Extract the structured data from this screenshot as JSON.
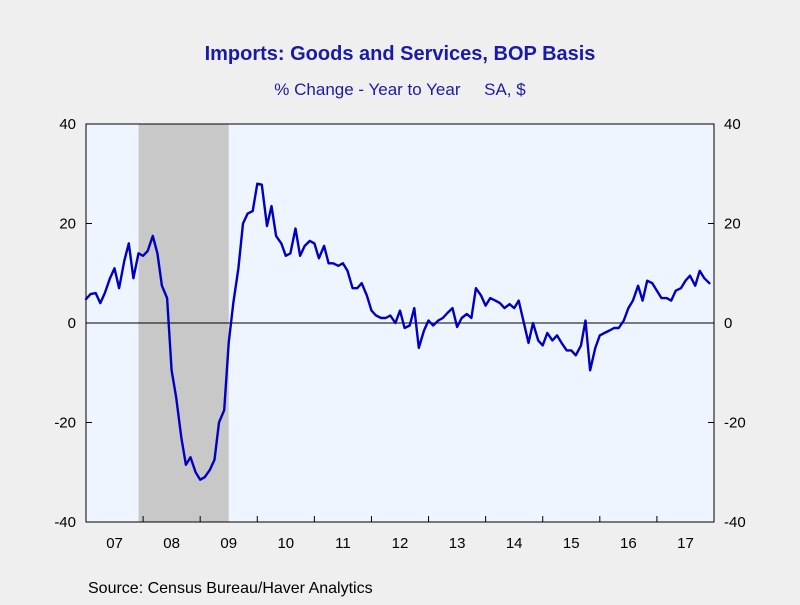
{
  "chart_data": {
    "type": "line",
    "title": "Imports: Goods and Services, BOP Basis",
    "subtitle": "% Change - Year to Year     SA, $",
    "source": "Source:  Census Bureau/Haver Analytics",
    "ylim": [
      -40,
      40
    ],
    "y_ticks": [
      -40,
      -20,
      0,
      20,
      40
    ],
    "x_range": [
      2007.0,
      2018.0
    ],
    "x_tick_labels": [
      "07",
      "08",
      "09",
      "10",
      "11",
      "12",
      "13",
      "14",
      "15",
      "16",
      "17"
    ],
    "recession": {
      "start": 2007.92,
      "end": 2009.5
    },
    "zero_line": true,
    "series": [
      {
        "color": "#0000c0",
        "x": [
          2007.0,
          2007.08,
          2007.17,
          2007.25,
          2007.33,
          2007.42,
          2007.5,
          2007.58,
          2007.67,
          2007.75,
          2007.83,
          2007.92,
          2008.0,
          2008.08,
          2008.17,
          2008.25,
          2008.33,
          2008.42,
          2008.5,
          2008.58,
          2008.67,
          2008.75,
          2008.83,
          2008.92,
          2009.0,
          2009.08,
          2009.17,
          2009.25,
          2009.33,
          2009.42,
          2009.5,
          2009.58,
          2009.67,
          2009.75,
          2009.83,
          2009.92,
          2010.0,
          2010.08,
          2010.17,
          2010.25,
          2010.33,
          2010.42,
          2010.5,
          2010.58,
          2010.67,
          2010.75,
          2010.83,
          2010.92,
          2011.0,
          2011.08,
          2011.17,
          2011.25,
          2011.33,
          2011.42,
          2011.5,
          2011.58,
          2011.67,
          2011.75,
          2011.83,
          2011.92,
          2012.0,
          2012.08,
          2012.17,
          2012.25,
          2012.33,
          2012.42,
          2012.5,
          2012.58,
          2012.67,
          2012.75,
          2012.83,
          2012.92,
          2013.0,
          2013.08,
          2013.17,
          2013.25,
          2013.33,
          2013.42,
          2013.5,
          2013.58,
          2013.67,
          2013.75,
          2013.83,
          2013.92,
          2014.0,
          2014.08,
          2014.17,
          2014.25,
          2014.33,
          2014.42,
          2014.5,
          2014.58,
          2014.67,
          2014.75,
          2014.83,
          2014.92,
          2015.0,
          2015.08,
          2015.17,
          2015.25,
          2015.33,
          2015.42,
          2015.5,
          2015.58,
          2015.67,
          2015.75,
          2015.83,
          2015.92,
          2016.0,
          2016.08,
          2016.17,
          2016.25,
          2016.33,
          2016.42,
          2016.5,
          2016.58,
          2016.67,
          2016.75,
          2016.83,
          2016.92,
          2017.0,
          2017.08,
          2017.17,
          2017.25,
          2017.33,
          2017.42,
          2017.5,
          2017.58,
          2017.67,
          2017.75,
          2017.83,
          2017.92
        ],
        "y": [
          4.8,
          5.8,
          6.0,
          4.0,
          6.0,
          9.0,
          11.0,
          7.0,
          12.5,
          16.0,
          9.0,
          14.0,
          13.5,
          14.5,
          17.5,
          14.0,
          7.5,
          5.0,
          -9.5,
          -15.0,
          -23.0,
          -28.5,
          -27.0,
          -30.0,
          -31.5,
          -31.0,
          -29.5,
          -27.5,
          -20.0,
          -17.5,
          -4.0,
          4.0,
          11.0,
          20.0,
          22.0,
          22.5,
          28.0,
          27.8,
          19.5,
          23.5,
          17.5,
          16.0,
          13.5,
          14.0,
          19.0,
          13.5,
          15.5,
          16.5,
          16.0,
          13.0,
          15.5,
          12.0,
          12.0,
          11.5,
          12.0,
          10.5,
          7.0,
          7.0,
          8.0,
          5.5,
          2.5,
          1.5,
          1.0,
          1.0,
          1.5,
          0.0,
          2.5,
          -1.0,
          -0.5,
          3.0,
          -5.0,
          -1.5,
          0.5,
          -0.5,
          0.5,
          1.0,
          2.0,
          3.0,
          -0.8,
          1.0,
          1.8,
          1.0,
          7.0,
          5.5,
          3.5,
          5.0,
          4.5,
          4.0,
          3.0,
          3.8,
          3.0,
          4.5,
          0.0,
          -4.0,
          0.0,
          -3.5,
          -4.5,
          -2.0,
          -3.5,
          -2.5,
          -4.0,
          -5.5,
          -5.5,
          -6.5,
          -4.5,
          0.5,
          -9.5,
          -5.0,
          -2.5,
          -2.0,
          -1.5,
          -1.0,
          -1.0,
          0.5,
          3.0,
          4.5,
          7.5,
          4.5,
          8.5,
          8.0,
          6.5,
          5.0,
          5.0,
          4.5,
          6.5,
          7.0,
          8.5,
          9.5,
          7.5,
          10.5,
          9.0,
          8.0
        ]
      }
    ]
  }
}
